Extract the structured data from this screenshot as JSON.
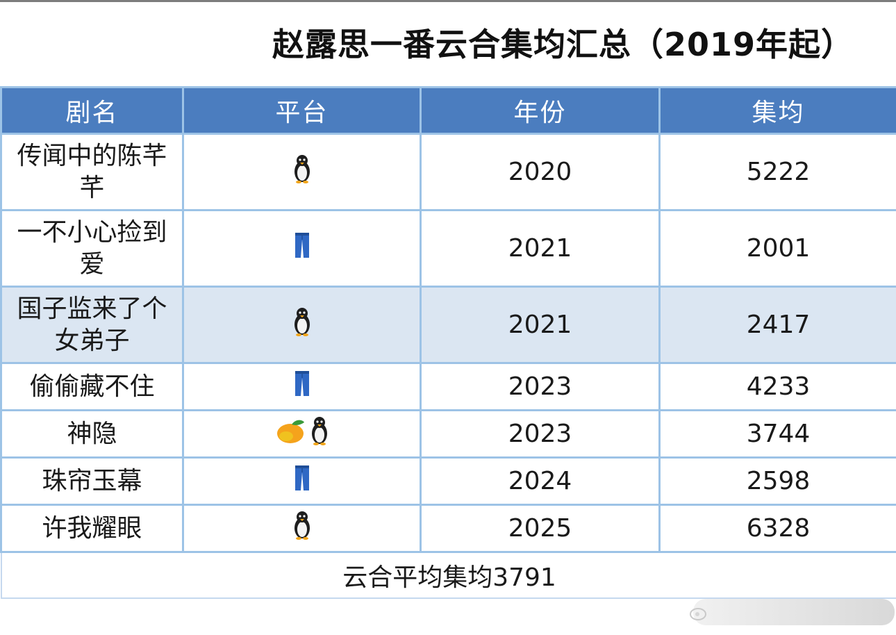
{
  "title": "赵露思一番云合集均汇总（2019年起）",
  "columns": [
    "剧名",
    "平台",
    "年份",
    "集均"
  ],
  "rows": [
    {
      "name": "传闻中的陈芊芊",
      "platform_icons": [
        "penguin-icon"
      ],
      "year": "2020",
      "avg": "5222"
    },
    {
      "name": "一不小心捡到爱",
      "platform_icons": [
        "jeans-icon"
      ],
      "year": "2021",
      "avg": "2001"
    },
    {
      "name": "国子监来了个女弟子",
      "platform_icons": [
        "penguin-icon"
      ],
      "year": "2021",
      "avg": "2417"
    },
    {
      "name": "偷偷藏不住",
      "platform_icons": [
        "jeans-icon"
      ],
      "year": "2023",
      "avg": "4233"
    },
    {
      "name": "神隐",
      "platform_icons": [
        "mango-icon",
        "penguin-icon"
      ],
      "year": "2023",
      "avg": "3744"
    },
    {
      "name": "珠帘玉幕",
      "platform_icons": [
        "jeans-icon"
      ],
      "year": "2024",
      "avg": "2598"
    },
    {
      "name": "许我耀眼",
      "platform_icons": [
        "penguin-icon"
      ],
      "year": "2025",
      "avg": "6328"
    }
  ],
  "footer": "云合平均集均3791",
  "colors": {
    "header_bg": "#4b7dbf",
    "border": "#9dc3e6",
    "highlight_row": "#dbe6f2"
  }
}
